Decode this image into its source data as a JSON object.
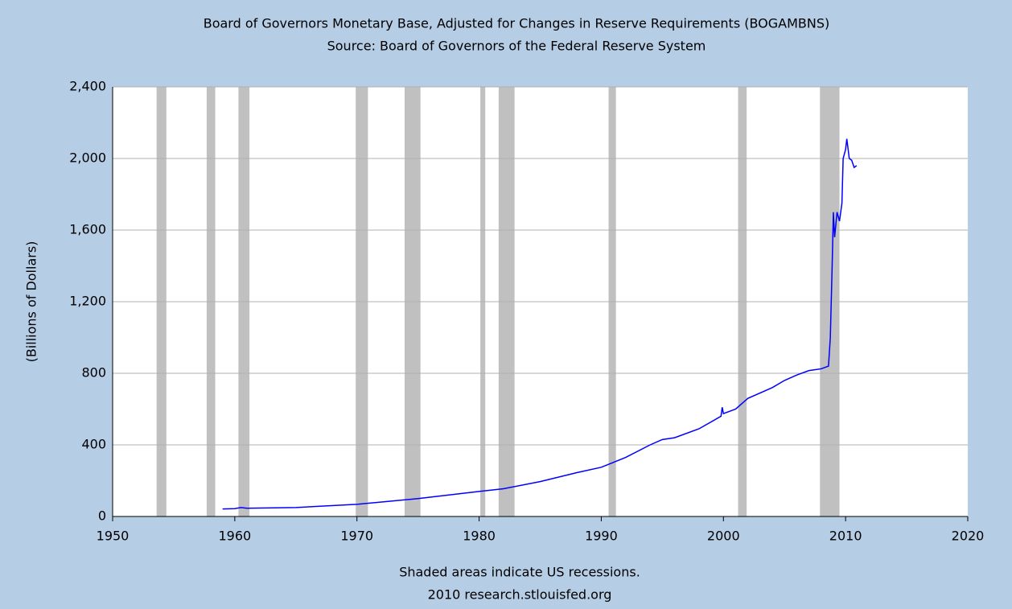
{
  "chart_data": {
    "type": "line",
    "title": "Board of Governors Monetary Base, Adjusted for Changes in Reserve Requirements (BOGAMBNS)",
    "subtitle": "Source: Board of Governors of the Federal Reserve System",
    "y_label": "(Billions of Dollars)",
    "note": "Shaded areas indicate US recessions.",
    "source": "2010 research.stlouisfed.org",
    "xlim": [
      1950,
      2020
    ],
    "xticks": [
      1950,
      1960,
      1970,
      1980,
      1990,
      2000,
      2010,
      2020
    ],
    "ylim": [
      0,
      2400
    ],
    "yticks": [
      0,
      400,
      800,
      {
        "value": 1200,
        "label": "1,200"
      },
      {
        "value": 1600,
        "label": "1,600"
      },
      {
        "value": 2000,
        "label": "2,000"
      },
      {
        "value": 2400,
        "label": "2,400"
      }
    ],
    "grid": true,
    "color": "#0000ff",
    "recession_color": "#c0c0c0",
    "recessions": [
      [
        1953.6,
        1954.4
      ],
      [
        1957.7,
        1958.4
      ],
      [
        1960.3,
        1961.2
      ],
      [
        1969.9,
        1970.9
      ],
      [
        1973.9,
        1975.2
      ],
      [
        1980.1,
        1980.5
      ],
      [
        1981.6,
        1982.9
      ],
      [
        1990.6,
        1991.2
      ],
      [
        2001.2,
        2001.9
      ],
      [
        2007.9,
        2009.5
      ]
    ],
    "x": [
      1959.0,
      1960.0,
      1960.5,
      1961.0,
      1965.0,
      1970.0,
      1975.0,
      1980.0,
      1982.0,
      1985.0,
      1988.0,
      1990.0,
      1992.0,
      1994.0,
      1995.0,
      1996.0,
      1998.0,
      1999.8,
      1999.9,
      2000.0,
      2001.0,
      2001.5,
      2002.0,
      2004.0,
      2005.0,
      2006.0,
      2007.0,
      2008.0,
      2008.6,
      2008.75,
      2008.9,
      2009.0,
      2009.1,
      2009.3,
      2009.5,
      2009.7,
      2009.8,
      2010.0,
      2010.1,
      2010.3,
      2010.5,
      2010.7,
      2010.9
    ],
    "values": [
      42,
      44,
      50,
      46,
      50,
      68,
      100,
      140,
      155,
      195,
      245,
      275,
      330,
      400,
      430,
      440,
      490,
      560,
      610,
      575,
      600,
      630,
      660,
      720,
      760,
      790,
      815,
      825,
      840,
      1000,
      1400,
      1700,
      1560,
      1700,
      1650,
      1750,
      2000,
      2050,
      2110,
      2000,
      1990,
      1950,
      1960
    ]
  }
}
